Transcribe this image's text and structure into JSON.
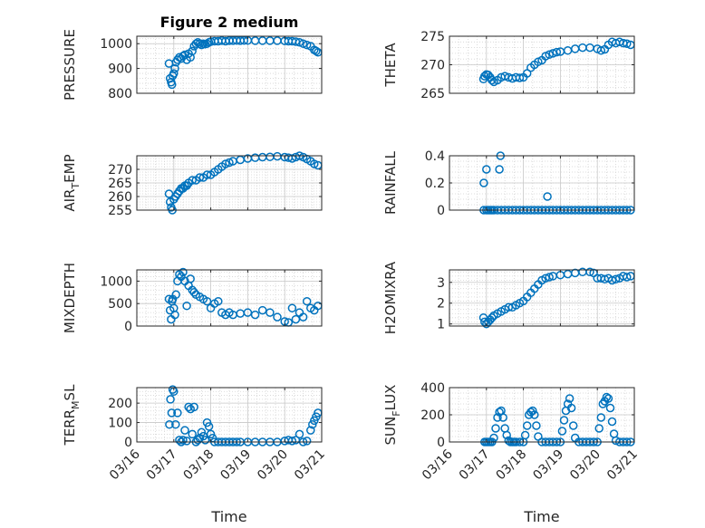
{
  "figure": {
    "title": "Figure 2 medium"
  },
  "chart_data": [
    {
      "type": "scatter",
      "title": "Figure 2 medium",
      "ylabel": "PRESSURE",
      "xlabel": "",
      "x_ticks": [
        "03/16",
        "03/17",
        "03/18",
        "03/19",
        "03/20",
        "03/21"
      ],
      "yticks": [
        800,
        900,
        1000
      ],
      "ylim": [
        800,
        1030
      ],
      "xlim": [
        0,
        5
      ],
      "grid": true,
      "color": "#0072BD",
      "x": [
        0.87,
        0.9,
        0.93,
        0.95,
        0.97,
        1.0,
        1.03,
        1.06,
        1.1,
        1.15,
        1.2,
        1.25,
        1.3,
        1.35,
        1.4,
        1.45,
        1.5,
        1.55,
        1.6,
        1.65,
        1.7,
        1.75,
        1.8,
        1.85,
        1.9,
        1.95,
        2.0,
        2.1,
        2.2,
        2.3,
        2.4,
        2.5,
        2.6,
        2.7,
        2.8,
        2.9,
        3.0,
        3.2,
        3.4,
        3.6,
        3.8,
        4.0,
        4.1,
        4.2,
        4.3,
        4.4,
        4.5,
        4.6,
        4.7,
        4.8,
        4.85,
        4.9
      ],
      "y": [
        920,
        860,
        845,
        835,
        870,
        880,
        900,
        925,
        935,
        945,
        940,
        950,
        955,
        935,
        960,
        945,
        970,
        990,
        1000,
        1005,
        1000,
        995,
        1000,
        998,
        1000,
        1005,
        1008,
        1010,
        1010,
        1012,
        1010,
        1012,
        1012,
        1013,
        1012,
        1013,
        1013,
        1012,
        1012,
        1012,
        1012,
        1011,
        1010,
        1010,
        1008,
        1005,
        1000,
        995,
        990,
        975,
        970,
        965
      ]
    },
    {
      "type": "scatter",
      "ylabel": "THETA",
      "xlabel": "",
      "x_ticks": [
        "03/16",
        "03/17",
        "03/18",
        "03/19",
        "03/20",
        "03/21"
      ],
      "yticks": [
        265,
        270,
        275
      ],
      "ylim": [
        265,
        275
      ],
      "xlim": [
        0,
        5
      ],
      "grid": true,
      "color": "#0072BD",
      "x": [
        0.92,
        0.95,
        1.0,
        1.05,
        1.1,
        1.15,
        1.2,
        1.3,
        1.4,
        1.5,
        1.6,
        1.7,
        1.8,
        1.9,
        2.0,
        2.1,
        2.2,
        2.3,
        2.4,
        2.5,
        2.6,
        2.7,
        2.8,
        2.9,
        3.0,
        3.2,
        3.4,
        3.6,
        3.8,
        4.0,
        4.1,
        4.2,
        4.3,
        4.4,
        4.5,
        4.6,
        4.7,
        4.8,
        4.9
      ],
      "y": [
        267.5,
        268.0,
        268.3,
        268.2,
        267.8,
        267.3,
        267.0,
        267.3,
        267.8,
        268.0,
        267.8,
        267.6,
        267.8,
        267.7,
        267.8,
        268.5,
        269.5,
        270.0,
        270.5,
        270.8,
        271.5,
        271.8,
        272.0,
        272.2,
        272.3,
        272.5,
        272.8,
        273.0,
        273.0,
        272.8,
        272.5,
        272.7,
        273.5,
        274.0,
        273.8,
        274.0,
        273.8,
        273.7,
        273.5
      ]
    },
    {
      "type": "scatter",
      "ylabel": "AIR_TEMP",
      "xlabel": "",
      "x_ticks": [
        "03/16",
        "03/17",
        "03/18",
        "03/19",
        "03/20",
        "03/21"
      ],
      "yticks": [
        255,
        260,
        265,
        270
      ],
      "ylim": [
        255,
        275
      ],
      "xlim": [
        0,
        5
      ],
      "grid": true,
      "color": "#0072BD",
      "x": [
        0.87,
        0.9,
        0.93,
        0.96,
        1.0,
        1.05,
        1.1,
        1.15,
        1.2,
        1.25,
        1.3,
        1.35,
        1.4,
        1.5,
        1.6,
        1.7,
        1.8,
        1.9,
        2.0,
        2.1,
        2.2,
        2.3,
        2.4,
        2.5,
        2.6,
        2.8,
        3.0,
        3.2,
        3.4,
        3.6,
        3.8,
        4.0,
        4.1,
        4.2,
        4.3,
        4.4,
        4.5,
        4.6,
        4.7,
        4.8,
        4.9
      ],
      "y": [
        261,
        258,
        256,
        255,
        259,
        260,
        261,
        262,
        263,
        263,
        264,
        264,
        265,
        266,
        266,
        267,
        267,
        268,
        268,
        269,
        270,
        271,
        272,
        272.5,
        273,
        273.5,
        274,
        274.3,
        274.5,
        274.6,
        274.8,
        274.5,
        274.3,
        274.0,
        274.5,
        275,
        274.5,
        273.8,
        273,
        272,
        271.5
      ]
    },
    {
      "type": "scatter",
      "ylabel": "RAINFALL",
      "xlabel": "",
      "x_ticks": [
        "03/16",
        "03/17",
        "03/18",
        "03/19",
        "03/20",
        "03/21"
      ],
      "yticks": [
        0,
        0.2,
        0.4
      ],
      "ylim": [
        0,
        0.4
      ],
      "xlim": [
        0,
        5
      ],
      "grid": true,
      "color": "#0072BD",
      "x": [
        0.93,
        1.0,
        1.05,
        1.1,
        1.15,
        1.2,
        1.3,
        1.4,
        1.5,
        1.6,
        1.7,
        1.8,
        1.9,
        2.0,
        2.1,
        2.2,
        2.3,
        2.4,
        2.5,
        2.6,
        2.7,
        2.8,
        2.9,
        3.0,
        3.1,
        3.2,
        3.3,
        3.4,
        3.5,
        3.6,
        3.7,
        3.8,
        3.9,
        4.0,
        4.1,
        4.2,
        4.3,
        4.4,
        4.5,
        4.6,
        4.7,
        4.8,
        4.9,
        0.93,
        1.0,
        1.35,
        1.38,
        2.65
      ],
      "y": [
        0,
        0,
        0,
        0,
        0,
        0,
        0,
        0,
        0,
        0,
        0,
        0,
        0,
        0,
        0,
        0,
        0,
        0,
        0,
        0,
        0,
        0,
        0,
        0,
        0,
        0,
        0,
        0,
        0,
        0,
        0,
        0,
        0,
        0,
        0,
        0,
        0,
        0,
        0,
        0,
        0,
        0,
        0,
        0.2,
        0.3,
        0.3,
        0.4,
        0.1
      ]
    },
    {
      "type": "scatter",
      "ylabel": "MIXDEPTH",
      "xlabel": "",
      "x_ticks": [
        "03/16",
        "03/17",
        "03/18",
        "03/19",
        "03/20",
        "03/21"
      ],
      "yticks": [
        0,
        500,
        1000
      ],
      "ylim": [
        0,
        1250
      ],
      "xlim": [
        0,
        5
      ],
      "grid": true,
      "color": "#0072BD",
      "x": [
        0.87,
        0.9,
        0.93,
        0.95,
        0.97,
        1.0,
        1.03,
        1.06,
        1.1,
        1.15,
        1.2,
        1.25,
        1.3,
        1.35,
        1.4,
        1.45,
        1.5,
        1.55,
        1.6,
        1.7,
        1.8,
        1.9,
        2.0,
        2.1,
        2.2,
        2.3,
        2.4,
        2.5,
        2.6,
        2.8,
        3.0,
        3.2,
        3.4,
        3.6,
        3.8,
        4.0,
        4.1,
        4.2,
        4.3,
        4.4,
        4.5,
        4.6,
        4.7,
        4.8,
        4.9
      ],
      "y": [
        600,
        350,
        150,
        550,
        600,
        400,
        250,
        700,
        1000,
        1150,
        1100,
        1200,
        1000,
        450,
        900,
        1050,
        800,
        750,
        700,
        650,
        600,
        550,
        400,
        500,
        550,
        300,
        250,
        300,
        250,
        280,
        300,
        250,
        350,
        300,
        200,
        100,
        80,
        400,
        150,
        300,
        200,
        550,
        400,
        350,
        450
      ]
    },
    {
      "type": "scatter",
      "ylabel": "H2OMIXRA",
      "xlabel": "",
      "x_ticks": [
        "03/16",
        "03/17",
        "03/18",
        "03/19",
        "03/20",
        "03/21"
      ],
      "yticks": [
        1,
        2,
        3
      ],
      "ylim": [
        0.9,
        3.6
      ],
      "xlim": [
        0,
        5
      ],
      "grid": true,
      "color": "#0072BD",
      "x": [
        0.92,
        0.95,
        1.0,
        1.05,
        1.1,
        1.15,
        1.2,
        1.3,
        1.4,
        1.5,
        1.6,
        1.7,
        1.8,
        1.9,
        2.0,
        2.1,
        2.2,
        2.3,
        2.4,
        2.5,
        2.6,
        2.7,
        2.8,
        3.0,
        3.2,
        3.4,
        3.6,
        3.8,
        3.9,
        4.0,
        4.1,
        4.2,
        4.3,
        4.4,
        4.5,
        4.6,
        4.7,
        4.8,
        4.9
      ],
      "y": [
        1.3,
        1.1,
        1.0,
        1.1,
        1.2,
        1.3,
        1.4,
        1.5,
        1.6,
        1.7,
        1.8,
        1.8,
        1.9,
        2.0,
        2.1,
        2.3,
        2.5,
        2.7,
        2.9,
        3.1,
        3.2,
        3.25,
        3.3,
        3.35,
        3.4,
        3.45,
        3.5,
        3.5,
        3.45,
        3.2,
        3.2,
        3.15,
        3.2,
        3.1,
        3.15,
        3.2,
        3.3,
        3.25,
        3.3
      ]
    },
    {
      "type": "scatter",
      "ylabel": "TERR_MSL",
      "xlabel": "Time",
      "x_ticks": [
        "03/16",
        "03/17",
        "03/18",
        "03/19",
        "03/20",
        "03/21"
      ],
      "yticks": [
        0,
        100,
        200
      ],
      "ylim": [
        0,
        280
      ],
      "xlim": [
        0,
        5
      ],
      "grid": true,
      "color": "#0072BD",
      "x": [
        0.88,
        0.91,
        0.94,
        0.97,
        1.0,
        1.05,
        1.1,
        1.15,
        1.2,
        1.25,
        1.3,
        1.35,
        1.4,
        1.45,
        1.5,
        1.55,
        1.6,
        1.65,
        1.7,
        1.75,
        1.8,
        1.85,
        1.9,
        1.95,
        2.0,
        2.05,
        2.1,
        2.2,
        2.3,
        2.4,
        2.5,
        2.6,
        2.7,
        2.8,
        3.0,
        3.2,
        3.4,
        3.6,
        3.8,
        4.0,
        4.1,
        4.2,
        4.3,
        4.4,
        4.5,
        4.6,
        4.7,
        4.75,
        4.8,
        4.85,
        4.9
      ],
      "y": [
        90,
        220,
        150,
        270,
        260,
        90,
        150,
        10,
        0,
        10,
        60,
        5,
        180,
        170,
        40,
        180,
        0,
        10,
        20,
        50,
        30,
        10,
        100,
        80,
        40,
        20,
        0,
        0,
        0,
        0,
        0,
        0,
        0,
        0,
        0,
        0,
        0,
        0,
        0,
        5,
        10,
        5,
        10,
        40,
        0,
        5,
        60,
        90,
        110,
        130,
        150
      ]
    },
    {
      "type": "scatter",
      "ylabel": "SUN_FLUX",
      "xlabel": "Time",
      "x_ticks": [
        "03/16",
        "03/17",
        "03/18",
        "03/19",
        "03/20",
        "03/21"
      ],
      "yticks": [
        0,
        200,
        400
      ],
      "ylim": [
        0,
        400
      ],
      "xlim": [
        0,
        5
      ],
      "grid": true,
      "color": "#0072BD",
      "x": [
        0.95,
        1.0,
        1.05,
        1.1,
        1.15,
        1.2,
        1.25,
        1.3,
        1.35,
        1.4,
        1.45,
        1.5,
        1.55,
        1.6,
        1.65,
        1.7,
        1.75,
        1.8,
        1.9,
        2.0,
        2.05,
        2.1,
        2.15,
        2.2,
        2.25,
        2.3,
        2.35,
        2.4,
        2.5,
        2.6,
        2.7,
        2.8,
        2.9,
        3.0,
        3.05,
        3.1,
        3.15,
        3.2,
        3.25,
        3.3,
        3.35,
        3.4,
        3.5,
        3.6,
        3.7,
        3.8,
        3.9,
        4.0,
        4.05,
        4.1,
        4.15,
        4.2,
        4.25,
        4.3,
        4.35,
        4.4,
        4.45,
        4.5,
        4.6,
        4.7,
        4.8,
        4.9
      ],
      "y": [
        0,
        0,
        0,
        0,
        0,
        30,
        100,
        180,
        220,
        230,
        180,
        100,
        50,
        10,
        0,
        0,
        0,
        0,
        0,
        0,
        50,
        120,
        200,
        220,
        230,
        200,
        120,
        40,
        0,
        0,
        0,
        0,
        0,
        0,
        80,
        160,
        230,
        280,
        320,
        250,
        120,
        30,
        0,
        0,
        0,
        0,
        0,
        0,
        100,
        180,
        280,
        300,
        330,
        320,
        250,
        150,
        60,
        10,
        0,
        0,
        0,
        0
      ]
    }
  ]
}
